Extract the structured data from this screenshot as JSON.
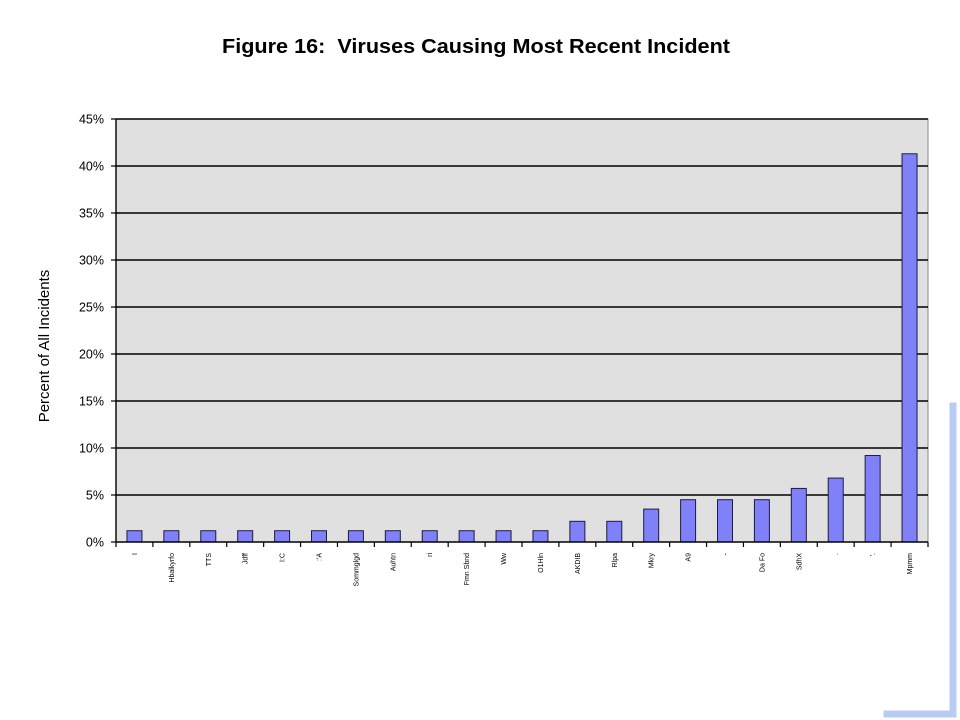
{
  "chart_data": {
    "type": "bar",
    "title": "Figure 16:  Viruses Causing Most Recent Incident",
    "ylabel": "Percent of All Incidents",
    "ylim": [
      0,
      45
    ],
    "yticks": [
      0,
      5,
      10,
      15,
      20,
      25,
      30,
      35,
      40,
      45
    ],
    "ytick_labels": [
      "0%",
      "5%",
      "10%",
      "15%",
      "20%",
      "25%",
      "30%",
      "35%",
      "40%",
      "45%"
    ],
    "categories": [
      "I",
      "Hbalkyrfo",
      "TTS",
      "Jdff",
      "I:C",
      ":'A",
      "Sommglgd",
      "Auhtn",
      "ri",
      "Fmn Sbnd",
      "Ww",
      "O1Hln",
      "AKDIB",
      "Rlpa",
      "Mkry",
      "A9",
      "-",
      "Da Fo",
      "SdhX",
      ".",
      "'.",
      "Mpmm"
    ],
    "values": [
      1.2,
      1.2,
      1.2,
      1.2,
      1.2,
      1.2,
      1.2,
      1.2,
      1.2,
      1.2,
      1.2,
      1.2,
      2.2,
      2.2,
      3.5,
      4.5,
      4.5,
      4.5,
      5.7,
      6.8,
      9.2,
      41.3
    ],
    "grid": true,
    "legend": "none",
    "bar_color": "#8080F8",
    "plot_background": "#E0E0E0"
  },
  "colors": {
    "accent": "#B8CBF3"
  }
}
